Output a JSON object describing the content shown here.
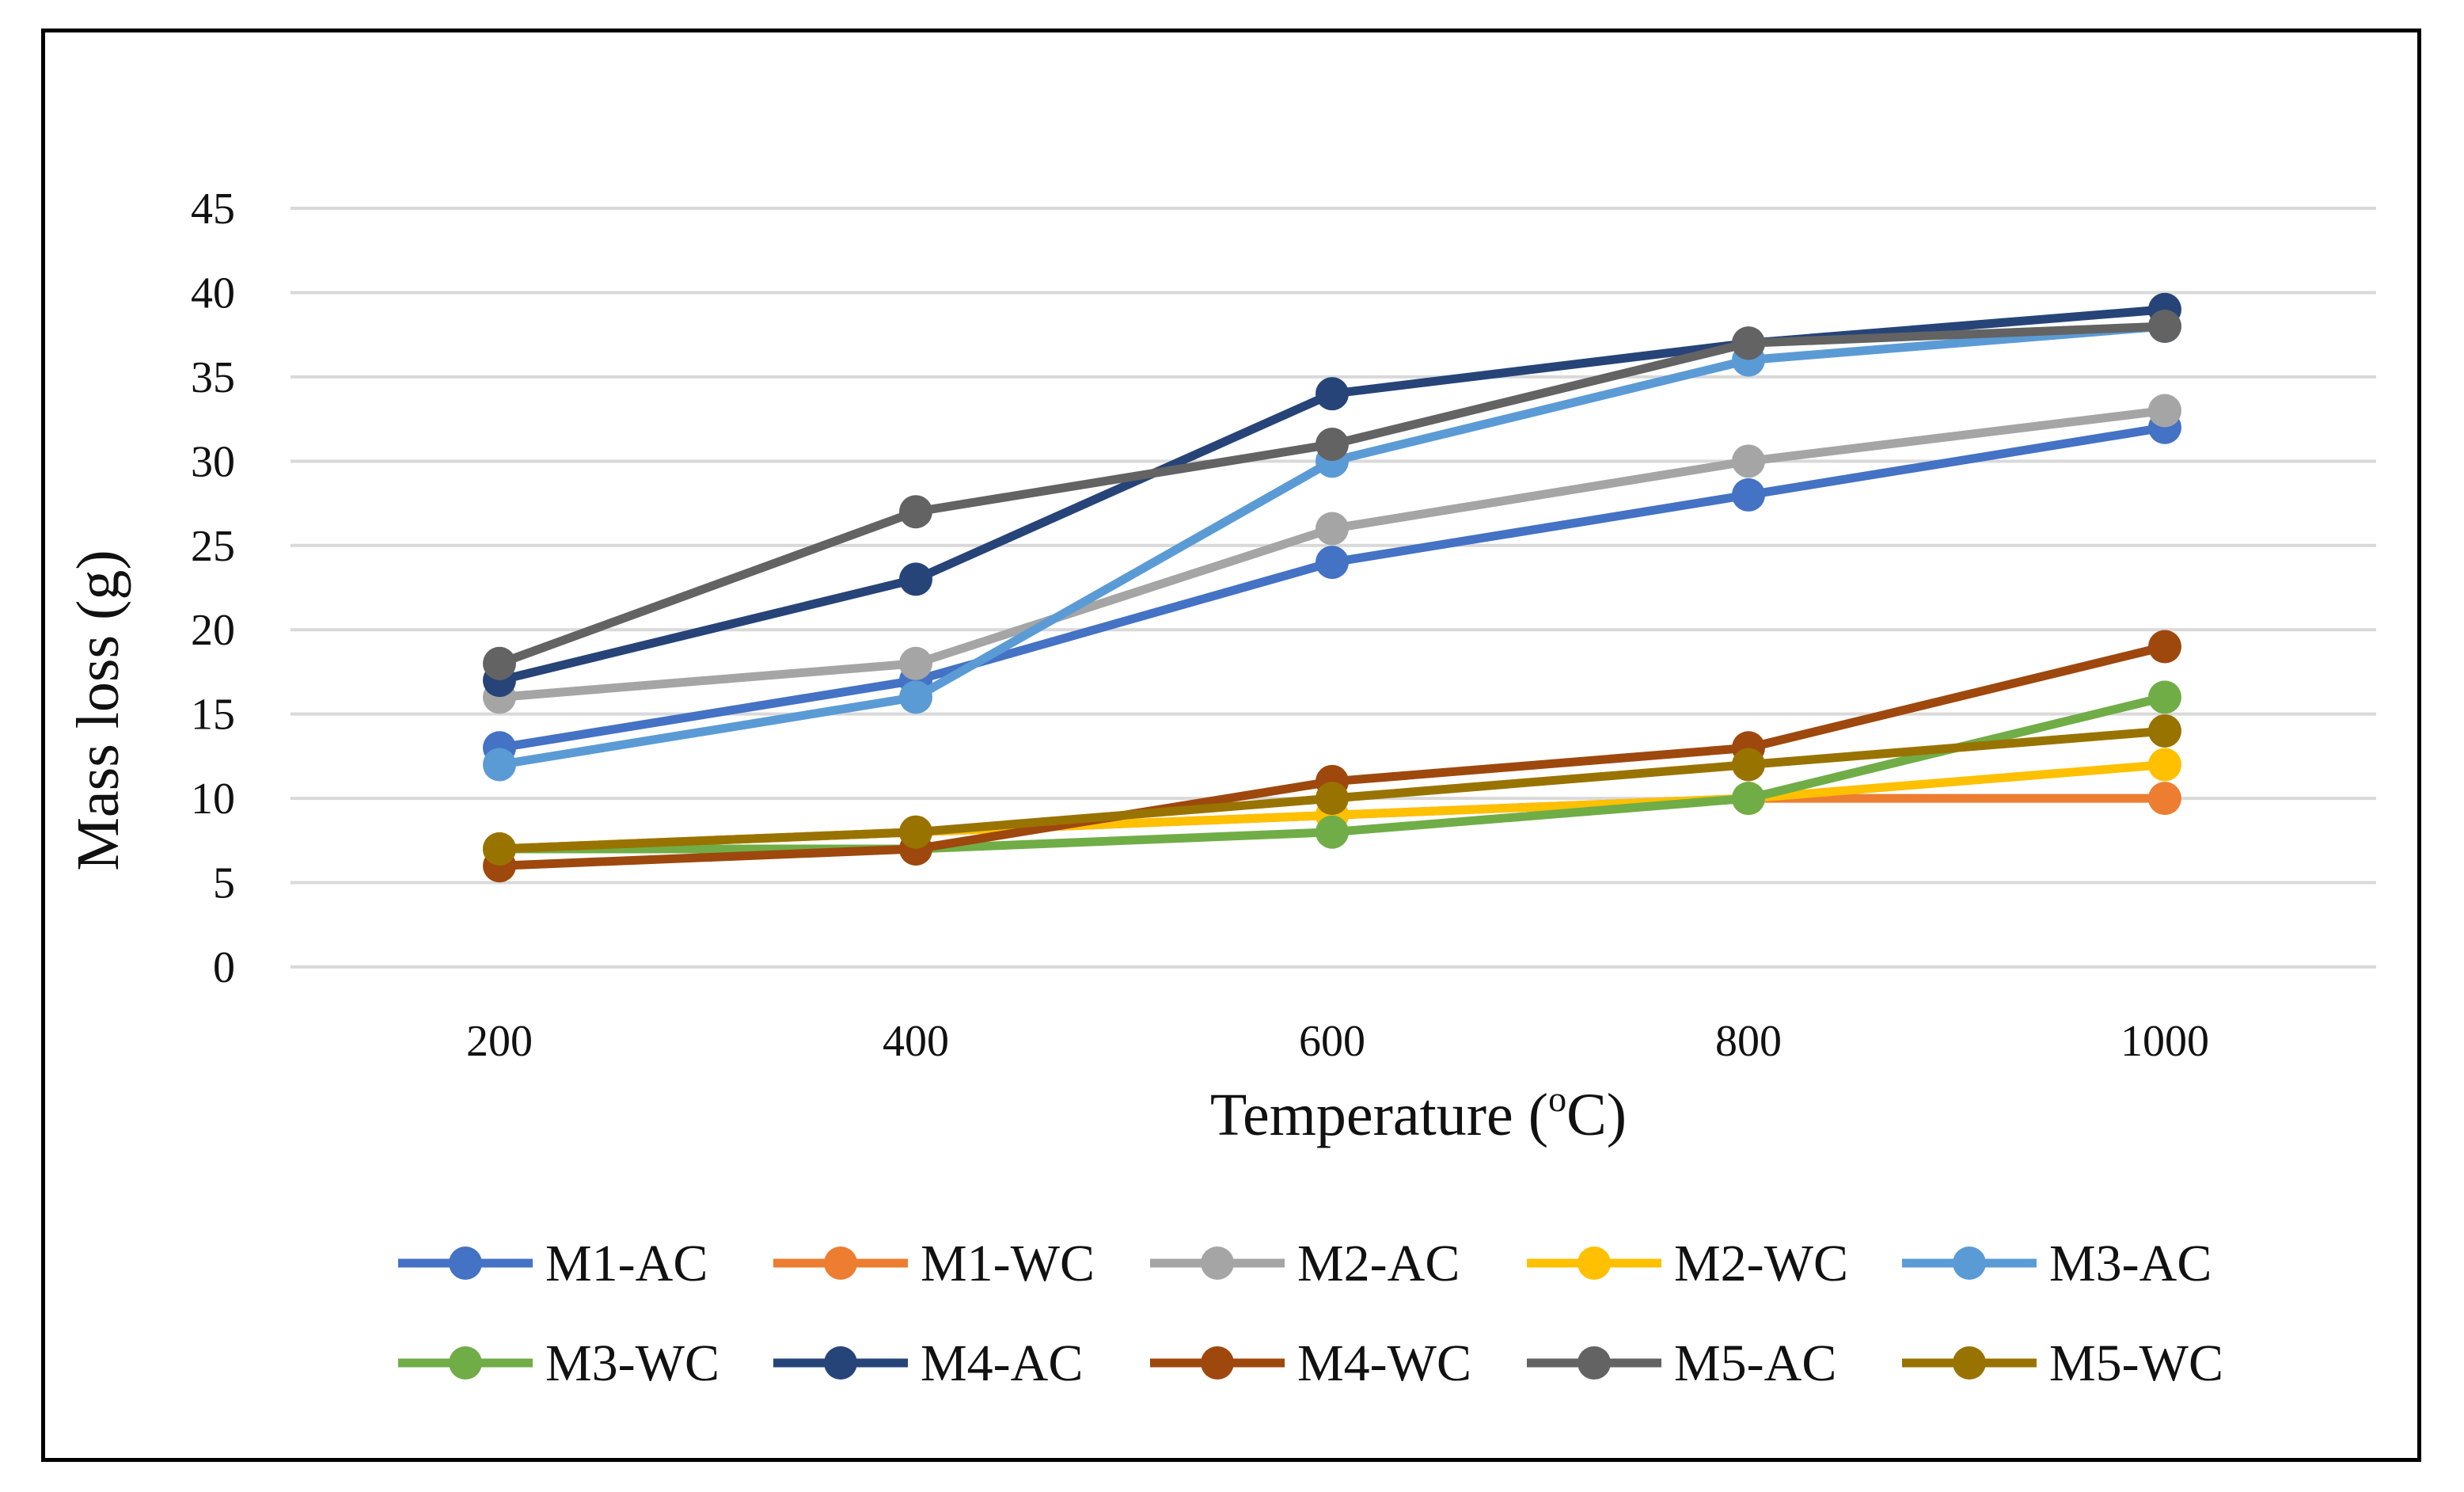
{
  "chart_data": {
    "type": "line",
    "xlabel": "Temperature (°C)",
    "xlabel_main": "Temperature (",
    "xlabel_sup": "o",
    "xlabel_tail": "C)",
    "ylabel": "Mass loss (g)",
    "x": [
      "200",
      "400",
      "600",
      "800",
      "1000"
    ],
    "ylim": [
      0,
      45
    ],
    "yticks": [
      "0",
      "5",
      "10",
      "15",
      "20",
      "25",
      "30",
      "35",
      "40",
      "45"
    ],
    "grid": true,
    "legend_position": "bottom",
    "series": [
      {
        "name": "M1-AC",
        "color": "#4472C4",
        "values": [
          13,
          17,
          24,
          28,
          32
        ]
      },
      {
        "name": "M1-WC",
        "color": "#ED7D31",
        "values": [
          7,
          8,
          9,
          10,
          10
        ]
      },
      {
        "name": "M2-AC",
        "color": "#A5A5A5",
        "values": [
          16,
          18,
          26,
          30,
          33
        ]
      },
      {
        "name": "M2-WC",
        "color": "#FFC000",
        "values": [
          7,
          8,
          9,
          10,
          12
        ]
      },
      {
        "name": "M3-AC",
        "color": "#5B9BD5",
        "values": [
          12,
          16,
          30,
          36,
          38
        ]
      },
      {
        "name": "M3-WC",
        "color": "#70AD47",
        "values": [
          7,
          7,
          8,
          10,
          16
        ]
      },
      {
        "name": "M4-AC",
        "color": "#264478",
        "values": [
          17,
          23,
          34,
          37,
          39
        ]
      },
      {
        "name": "M4-WC",
        "color": "#9E480E",
        "values": [
          6,
          7,
          11,
          13,
          19
        ]
      },
      {
        "name": "M5-AC",
        "color": "#636363",
        "values": [
          18,
          27,
          31,
          37,
          38
        ]
      },
      {
        "name": "M5-WC",
        "color": "#997300",
        "values": [
          7,
          8,
          10,
          12,
          14
        ]
      }
    ]
  }
}
